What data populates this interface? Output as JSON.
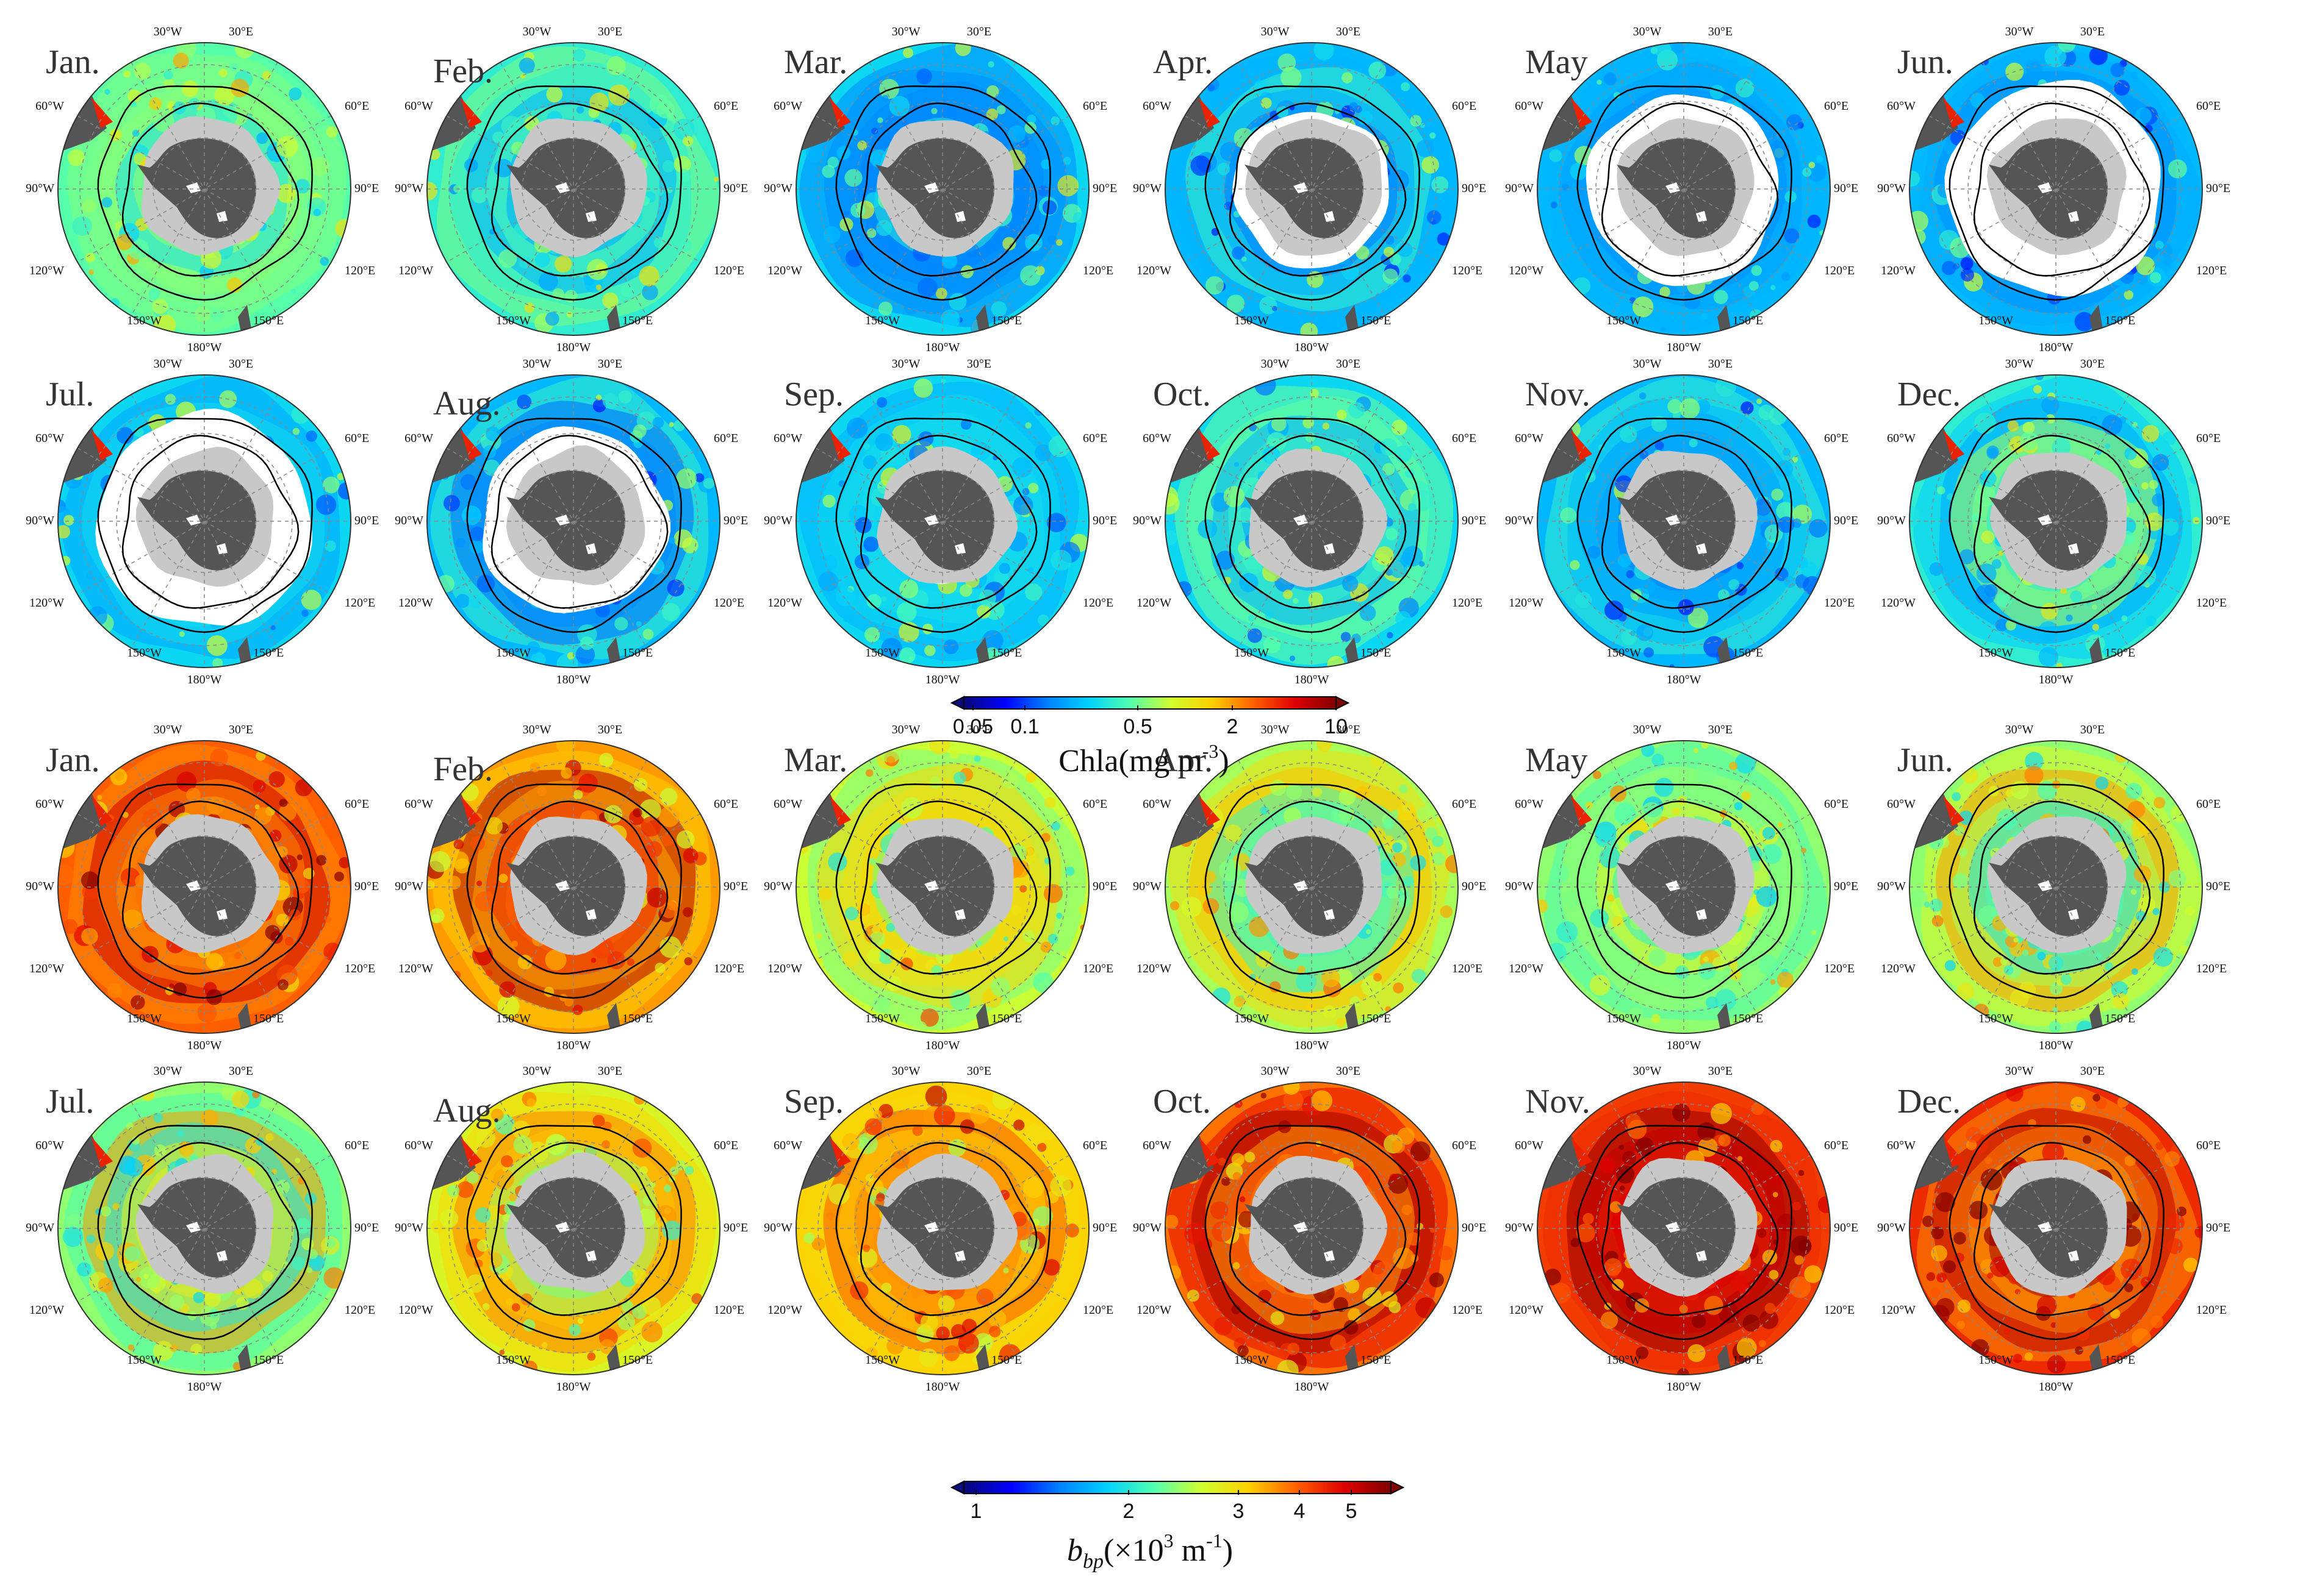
{
  "months": [
    "Jan.",
    "Feb.",
    "Mar.",
    "Apr.",
    "May",
    "Jun.",
    "Jul.",
    "Aug.",
    "Sep.",
    "Oct.",
    "Nov.",
    "Dec."
  ],
  "longitude_labels": [
    "30°W",
    "30°E",
    "60°W",
    "60°E",
    "90°W",
    "90°E",
    "120°W",
    "120°E",
    "150°W",
    "150°E",
    "180°W"
  ],
  "panel_groups": [
    {
      "variable": "chla",
      "sea_ice_cover_per_month": [
        0,
        0,
        0.05,
        0.35,
        0.65,
        0.85,
        0.85,
        0.6,
        0.05,
        0.05,
        0.02,
        0
      ],
      "ocean_level_per_month": [
        0.45,
        0.4,
        0.35,
        0.3,
        0.3,
        0.3,
        0.35,
        0.3,
        0.35,
        0.35,
        0.3,
        0.4
      ]
    },
    {
      "variable": "bbp",
      "sea_ice_cover_per_month": [
        0,
        0,
        0,
        0,
        0,
        0,
        0,
        0,
        0,
        0,
        0,
        0
      ],
      "ocean_level_per_month": [
        0.78,
        0.72,
        0.55,
        0.52,
        0.5,
        0.5,
        0.5,
        0.58,
        0.66,
        0.76,
        0.82,
        0.84
      ]
    }
  ],
  "colorbars": {
    "chla": {
      "title": "Chla(mg m",
      "title_sup": "-3",
      "title_end": ")",
      "ticks": [
        "0.05",
        "0.1",
        "0.5",
        "2",
        "10"
      ],
      "colors": [
        "#08087a",
        "#0000ff",
        "#0080ff",
        "#00d0ff",
        "#50ffb0",
        "#d0ff30",
        "#ffd000",
        "#ff6000",
        "#e00000",
        "#800000"
      ]
    },
    "bbp": {
      "title_main": "b",
      "title_sub": "bp",
      "title_rest": "(×10",
      "title_sup": "3",
      "title_end": " m",
      "title_sup2": "-1",
      "title_close": ")",
      "ticks": [
        "1",
        "2",
        "3",
        "4",
        "5"
      ],
      "colors": [
        "#08087a",
        "#0000ff",
        "#0080ff",
        "#00d0ff",
        "#50ffb0",
        "#d0ff30",
        "#ffd000",
        "#ff6000",
        "#e00000",
        "#800000"
      ]
    }
  },
  "colors": {
    "antarctica": "#555555",
    "ice_shelf": "#c8c8c8",
    "sea_ice": "#ffffff",
    "front_line": "#000000",
    "graticule": "#888888"
  }
}
